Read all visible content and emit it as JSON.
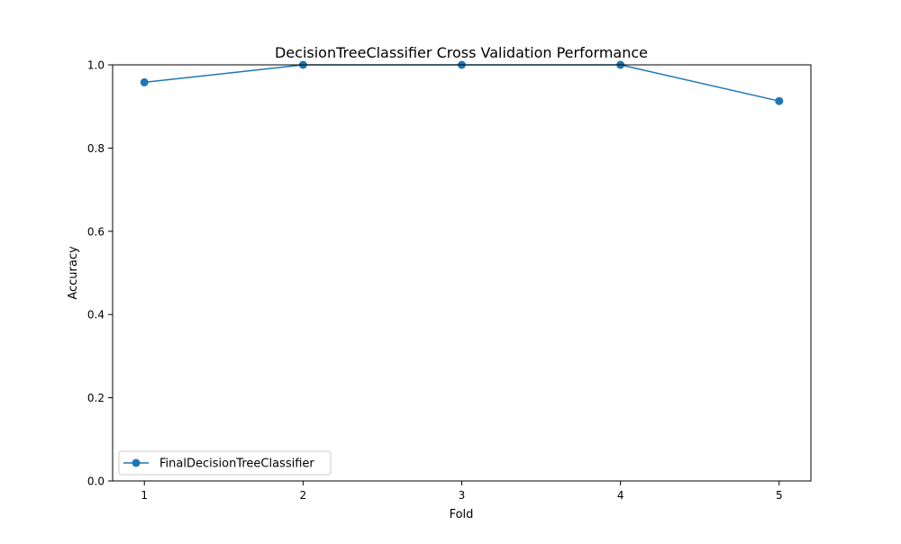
{
  "chart_data": {
    "type": "line",
    "title": "DecisionTreeClassifier Cross Validation Performance",
    "xlabel": "Fold",
    "ylabel": "Accuracy",
    "x": [
      1,
      2,
      3,
      4,
      5
    ],
    "xlim": [
      0.8,
      5.2
    ],
    "ylim": [
      0.0,
      1.0
    ],
    "xticks": [
      "1",
      "2",
      "3",
      "4",
      "5"
    ],
    "yticks": [
      "0.0",
      "0.2",
      "0.4",
      "0.6",
      "0.8",
      "1.0"
    ],
    "grid": false,
    "legend_position": "lower-left",
    "series": [
      {
        "name": "FinalDecisionTreeClassifier",
        "color": "#1f77b4",
        "marker": "circle",
        "values": [
          0.958,
          1.0,
          1.0,
          1.0,
          0.913
        ]
      }
    ]
  }
}
